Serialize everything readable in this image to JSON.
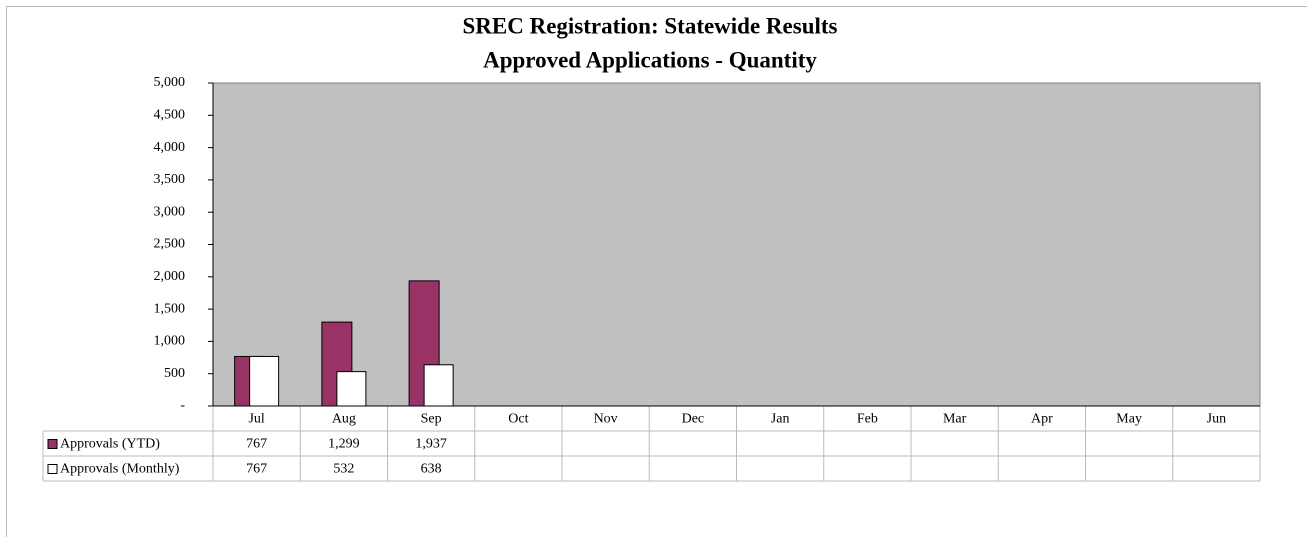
{
  "chart_data": {
    "type": "bar",
    "title": [
      "SREC Registration: Statewide Results",
      "Approved Applications - Quantity"
    ],
    "categories": [
      "Jul",
      "Aug",
      "Sep",
      "Oct",
      "Nov",
      "Dec",
      "Jan",
      "Feb",
      "Mar",
      "Apr",
      "May",
      "Jun"
    ],
    "series": [
      {
        "name": "Approvals (YTD)",
        "color": "#993366",
        "values": [
          767,
          1299,
          1937,
          null,
          null,
          null,
          null,
          null,
          null,
          null,
          null,
          null
        ],
        "value_labels": [
          "767",
          "1,299",
          "1,937",
          null,
          null,
          null,
          null,
          null,
          null,
          null,
          null,
          null
        ]
      },
      {
        "name": "Approvals (Monthly)",
        "color": "#ffffff",
        "values": [
          767,
          532,
          638,
          null,
          null,
          null,
          null,
          null,
          null,
          null,
          null,
          null
        ],
        "value_labels": [
          "767",
          "532",
          "638",
          null,
          null,
          null,
          null,
          null,
          null,
          null,
          null,
          null
        ]
      }
    ],
    "ylim": [
      0,
      5000
    ],
    "yticks": [
      {
        "value": 0,
        "label": "-"
      },
      500,
      {
        "value": 1000,
        "label": "1,000"
      },
      {
        "value": 1500,
        "label": "1,500"
      },
      {
        "value": 2000,
        "label": "2,000"
      },
      {
        "value": 2500,
        "label": "2,500"
      },
      {
        "value": 3000,
        "label": "3,000"
      },
      {
        "value": 3500,
        "label": "3,500"
      },
      {
        "value": 4000,
        "label": "4,000"
      },
      {
        "value": 4500,
        "label": "4,500"
      },
      {
        "value": 5000,
        "label": "5,000"
      }
    ],
    "plot_background": "#c0c0c0"
  }
}
